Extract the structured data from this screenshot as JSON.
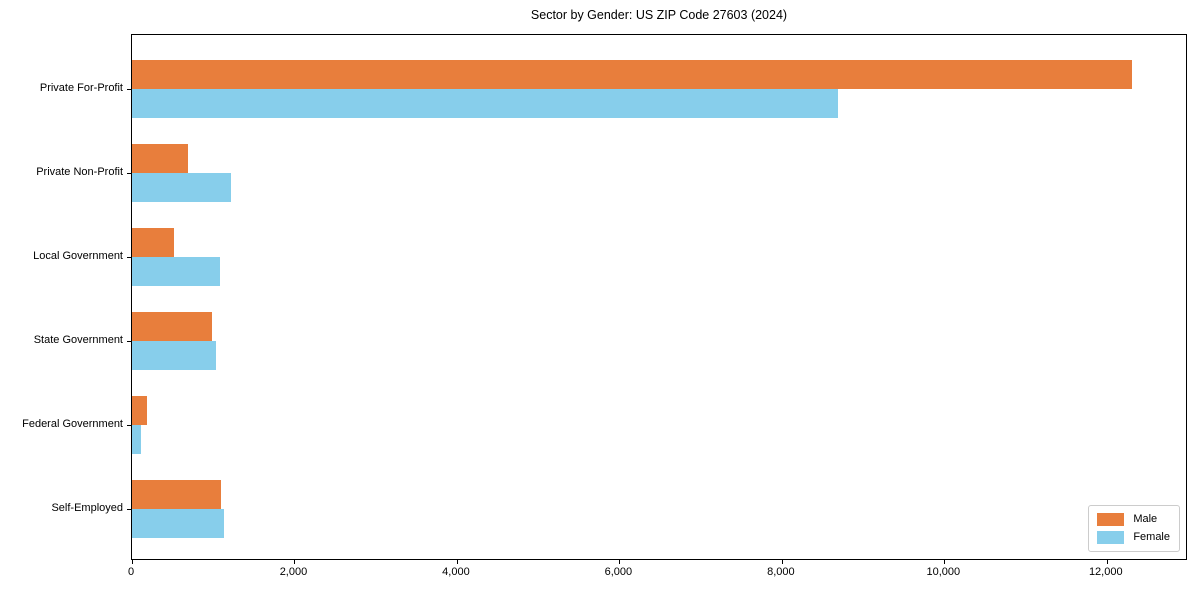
{
  "chart_data": {
    "type": "bar",
    "orientation": "horizontal",
    "title": "Sector by Gender: US ZIP Code 27603 (2024)",
    "categories": [
      "Private For-Profit",
      "Private Non-Profit",
      "Local Government",
      "State Government",
      "Federal Government",
      "Self-Employed"
    ],
    "series": [
      {
        "name": "Male",
        "color": "#e87e3c",
        "values": [
          12330,
          690,
          520,
          990,
          190,
          1100
        ]
      },
      {
        "name": "Female",
        "color": "#87ceeb",
        "values": [
          8710,
          1220,
          1090,
          1040,
          110,
          1130
        ]
      }
    ],
    "xlabel": "",
    "ylabel": "",
    "xlim": [
      0,
      13000
    ],
    "xticks": [
      0,
      2000,
      4000,
      6000,
      8000,
      10000,
      12000
    ],
    "xtick_labels": [
      "0",
      "2,000",
      "4,000",
      "6,000",
      "8,000",
      "10,000",
      "12,000"
    ],
    "legend_position": "lower right",
    "grid": false,
    "background_color": "#ffffff",
    "axis_color": "#000000"
  }
}
